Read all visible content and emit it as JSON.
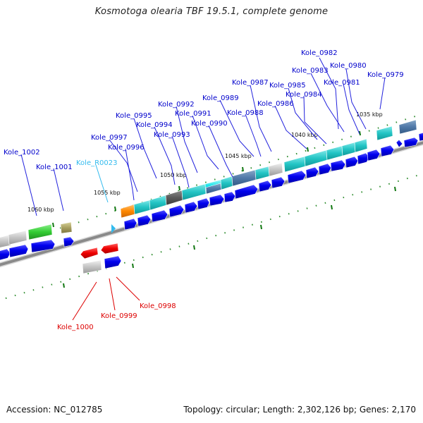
{
  "title": "Kosmotoga olearia TBF 19.5.1, complete genome",
  "footer": {
    "accession": "Accession: NC_012785",
    "summary": "Topology: circular; Length: 2,302,126 bp; Genes: 2,170"
  },
  "colors": {
    "top_labels": "#0000cc",
    "rna_label": "#33bbee",
    "bottom_labels": "#dd0000",
    "forward_genes": "#0000ee",
    "backbone": "#888888",
    "tick": "#117711"
  },
  "kbp_ticks": [
    "1035 kbp",
    "1040 kbp",
    "1045 kbp",
    "1050 kbp",
    "1055 kbp",
    "1060 kbp"
  ],
  "gene_labels_top": [
    "Kole_0982",
    "Kole_0980",
    "Kole_0983",
    "Kole_0979",
    "Kole_0985",
    "Kole_0981",
    "Kole_0987",
    "Kole_0984",
    "Kole_0989",
    "Kole_0986",
    "Kole_0992",
    "Kole_0991",
    "Kole_0988",
    "Kole_0995",
    "Kole_0990",
    "Kole_0994",
    "Kole_0993",
    "Kole_0997",
    "Kole_0996",
    "Kole_1002",
    "Kole_1001"
  ],
  "rna_label": "Kole_R0023",
  "gene_labels_bottom": [
    "Kole_0998",
    "Kole_0999",
    "Kole_1000"
  ]
}
